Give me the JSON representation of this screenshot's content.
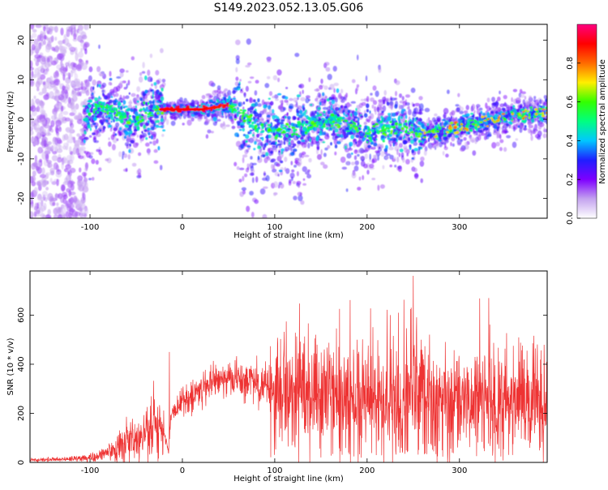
{
  "figure_title": "S149.2023.052.13.05.G06",
  "chart_data": [
    {
      "type": "heatmap",
      "xlabel": "Height of straight line (km)",
      "ylabel": "Frequency (Hz)",
      "xlim": [
        -165,
        395
      ],
      "ylim": [
        -25,
        24
      ],
      "x_ticks": [
        -100,
        0,
        100,
        200,
        300
      ],
      "y_ticks": [
        -20,
        -10,
        0,
        10,
        20
      ],
      "colorbar": {
        "label": "Normalized spectral amplitude",
        "range": [
          0,
          1
        ],
        "ticks": [
          0.0,
          0.2,
          0.4,
          0.6,
          0.8
        ],
        "colors": [
          "#ffffff",
          "#c4a3ef",
          "#7e00ff",
          "#1f1fff",
          "#00c8ff",
          "#00ff80",
          "#33ff00",
          "#ffee00",
          "#ff6a00",
          "#ff0000",
          "#ff0080"
        ]
      },
      "ridge": {
        "x": [
          -105,
          -90,
          -70,
          -55,
          -45,
          -35,
          -25,
          -15,
          0,
          15,
          25,
          35,
          50,
          60,
          80,
          100,
          130,
          160,
          200,
          240,
          260,
          280,
          300,
          320,
          340,
          360,
          380,
          395
        ],
        "y": [
          0,
          3,
          2,
          -1,
          1,
          2,
          2.5,
          2.5,
          2.5,
          2.5,
          2.6,
          3,
          3.5,
          2,
          -2,
          -3,
          -2,
          0,
          -3,
          -2,
          -4,
          -3,
          -2,
          -1,
          0,
          1,
          1.5,
          2
        ]
      }
    },
    {
      "type": "line",
      "xlabel": "Height of straight line (km)",
      "ylabel": "SNR (10 * v/v)",
      "xlim": [
        -165,
        395
      ],
      "ylim": [
        0,
        780
      ],
      "x_ticks": [
        -100,
        0,
        100,
        200,
        300
      ],
      "y_ticks": [
        0,
        200,
        400,
        600
      ],
      "color": "#ee3333",
      "envelope": {
        "x": [
          -165,
          -130,
          -100,
          -80,
          -60,
          -40,
          -30,
          -20,
          -15,
          -12,
          -5,
          0,
          20,
          40,
          60,
          80,
          90,
          95,
          100,
          150,
          200,
          250,
          300,
          350,
          395
        ],
        "y": [
          10,
          12,
          20,
          40,
          90,
          120,
          150,
          120,
          40,
          200,
          230,
          250,
          300,
          340,
          340,
          330,
          320,
          300,
          280,
          260,
          250,
          250,
          250,
          260,
          270
        ]
      },
      "peaks": [
        {
          "x": -14,
          "y": 450
        },
        {
          "x": 250,
          "y": 760
        }
      ]
    }
  ]
}
